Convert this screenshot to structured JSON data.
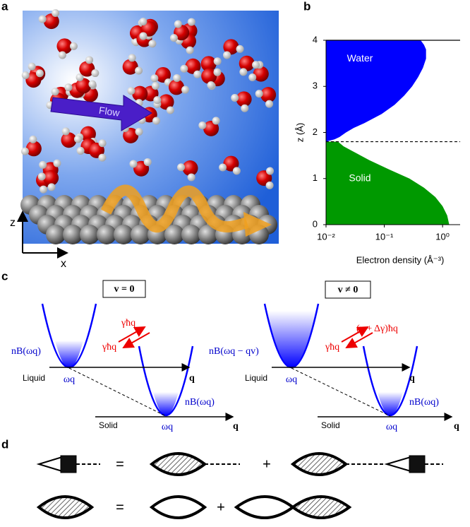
{
  "panel_labels": [
    "a",
    "b",
    "c",
    "d"
  ],
  "panel_a": {
    "z_axis": "z",
    "x_axis": "x",
    "flow": "Flow"
  },
  "chart_data": {
    "type": "area",
    "xlabel": "Electron density (Å⁻³)",
    "ylabel": "z (Å)",
    "xscale": "log",
    "xlim": [
      0.01,
      2
    ],
    "xticks": [
      {
        "value": 0.01,
        "label": "10⁻²"
      },
      {
        "value": 0.1,
        "label": "10⁻¹"
      },
      {
        "value": 1,
        "label": "10⁰"
      }
    ],
    "ylim": [
      0,
      4
    ],
    "yticks": [
      0,
      1,
      2,
      3,
      4
    ],
    "hlines": [
      {
        "y": 1.8,
        "style": "dashed"
      },
      {
        "y": 4,
        "style": "solid"
      }
    ],
    "series": [
      {
        "name": "Water",
        "color": "#0000ff",
        "y": [
          1.8,
          1.85,
          1.9,
          2.0,
          2.1,
          2.2,
          2.4,
          2.6,
          2.8,
          3.0,
          3.2,
          3.4,
          3.6,
          3.8,
          3.9,
          4.0
        ],
        "x": [
          0.01,
          0.014,
          0.017,
          0.022,
          0.03,
          0.045,
          0.09,
          0.15,
          0.22,
          0.3,
          0.38,
          0.46,
          0.52,
          0.52,
          0.48,
          0.42
        ]
      },
      {
        "name": "Solid",
        "color": "#009900",
        "y": [
          0,
          0.2,
          0.4,
          0.6,
          0.8,
          1.0,
          1.2,
          1.4,
          1.6,
          1.7,
          1.8
        ],
        "x": [
          1.3,
          1.2,
          1.0,
          0.75,
          0.48,
          0.27,
          0.12,
          0.055,
          0.028,
          0.02,
          0.016
        ]
      }
    ]
  },
  "panel_c": {
    "left": {
      "box": "v = 0",
      "rate_up": "γħq",
      "rate_down": "γħq",
      "liquid_occupation": "nB(ωq)",
      "liquid": "Liquid",
      "liquid_freq": "ωq",
      "liquid_q": "q",
      "solid_occupation": "nB(ωq)",
      "solid": "Solid",
      "solid_freq": "ωq",
      "solid_q": "q"
    },
    "right": {
      "box": "v ≠ 0",
      "rate_up": "(γ + Δγ)ħq",
      "rate_down": "γħq",
      "liquid_occupation": "nB(ωq − qv)",
      "liquid": "Liquid",
      "liquid_freq": "ωq",
      "liquid_q": "q",
      "solid_occupation": "nB(ωq)",
      "solid": "Solid",
      "solid_freq": "ωq",
      "solid_q": "q"
    }
  },
  "panel_d": {
    "row1": [
      "=",
      "+"
    ],
    "row2": [
      "=",
      "+"
    ]
  }
}
